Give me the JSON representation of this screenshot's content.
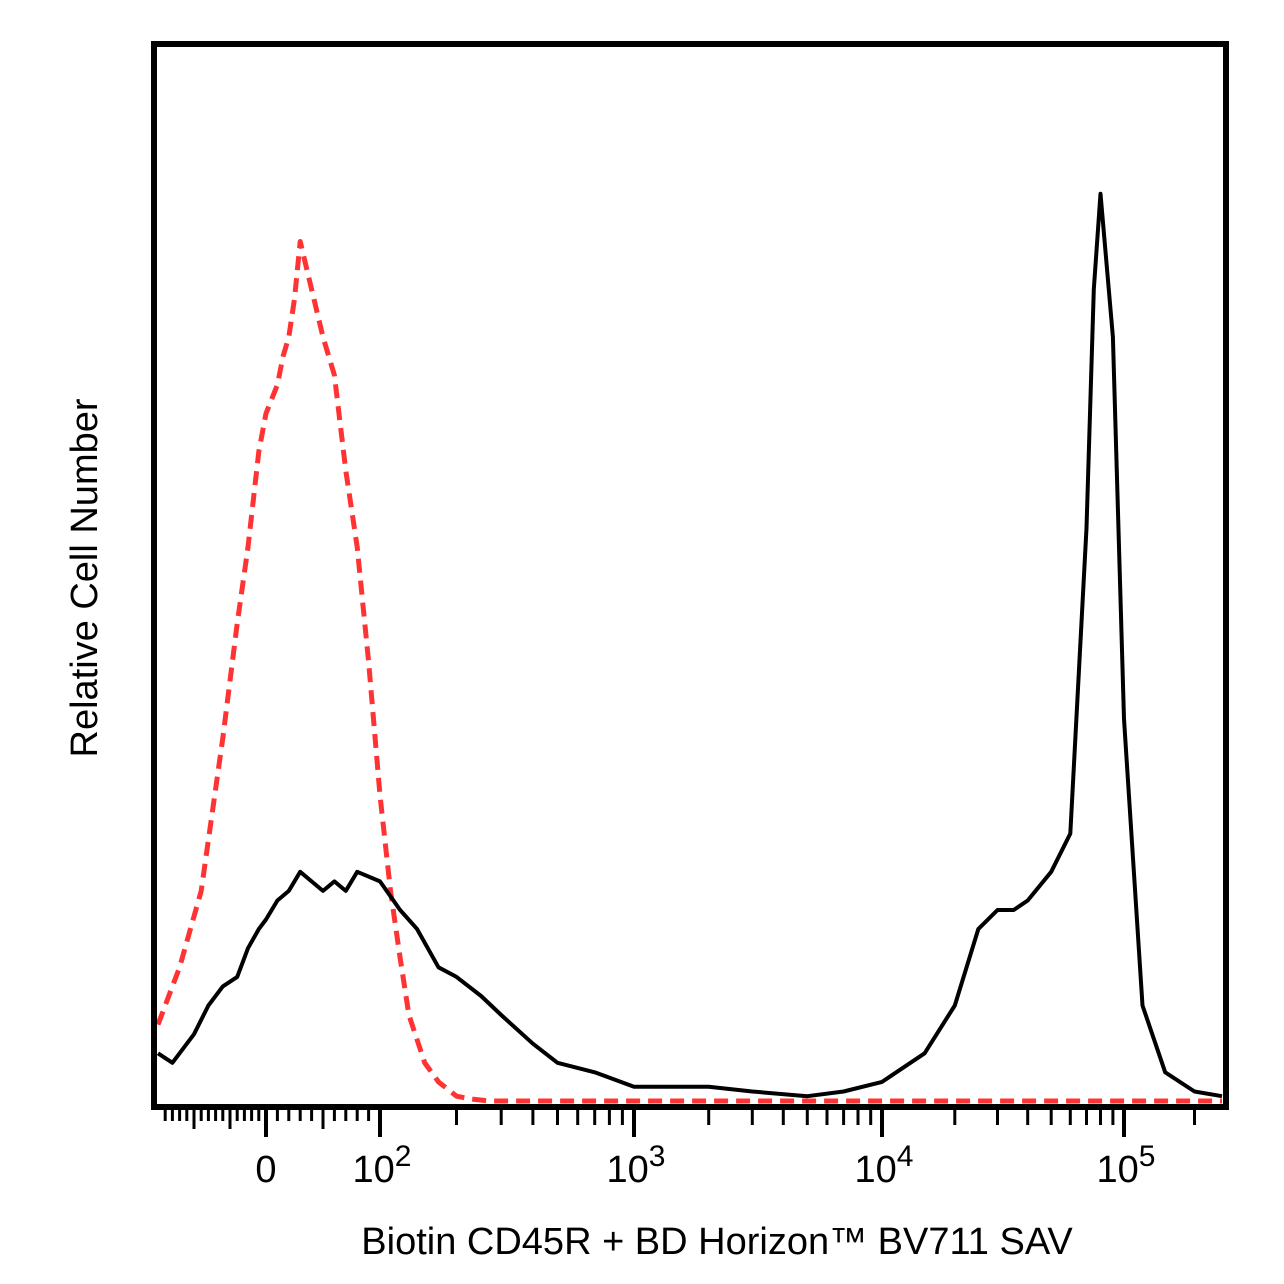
{
  "chart_data": {
    "type": "line",
    "xlabel": "Biotin CD45R + BD Horizon™ BV711 SAV",
    "ylabel": "Relative Cell Number",
    "x_scale": "biexponential (logicle)",
    "xlim": [
      -150,
      262144
    ],
    "ylim": [
      0,
      100
    ],
    "grid": false,
    "legend": "none",
    "x_tick_labels": [
      {
        "value": 0,
        "base": "0",
        "exp": ""
      },
      {
        "value": 100,
        "base": "10",
        "exp": "2"
      },
      {
        "value": 1000,
        "base": "10",
        "exp": "3"
      },
      {
        "value": 10000,
        "base": "10",
        "exp": "4"
      },
      {
        "value": 100000,
        "base": "10",
        "exp": "5"
      }
    ],
    "series": [
      {
        "style": "dashed",
        "color": "#ff3333",
        "x": [
          -150,
          -120,
          -90,
          -60,
          -40,
          -25,
          -10,
          0,
          10,
          15,
          20,
          25,
          30,
          40,
          50,
          60,
          70,
          80,
          90,
          100,
          110,
          120,
          130,
          150,
          170,
          200,
          230,
          270,
          300,
          350,
          400,
          500,
          700,
          1000,
          2000,
          5000,
          10000,
          20000,
          50000,
          100000,
          200000,
          262144
        ],
        "y": [
          8,
          14,
          22,
          38,
          50,
          58,
          68,
          72,
          75,
          78,
          80,
          84,
          90,
          85,
          80,
          76,
          66,
          58,
          46,
          32,
          22,
          15,
          9,
          4,
          2,
          0.5,
          0.2,
          0,
          0,
          0,
          0,
          0,
          0,
          0,
          0,
          0,
          0,
          0,
          0,
          0,
          0,
          0
        ]
      },
      {
        "style": "solid",
        "color": "#000000",
        "x": [
          -150,
          -130,
          -100,
          -80,
          -60,
          -40,
          -25,
          -10,
          0,
          10,
          20,
          30,
          40,
          50,
          60,
          70,
          80,
          100,
          120,
          140,
          170,
          200,
          250,
          300,
          400,
          500,
          700,
          1000,
          1500,
          2000,
          3000,
          5000,
          7000,
          10000,
          15000,
          20000,
          25000,
          30000,
          35000,
          40000,
          50000,
          60000,
          70000,
          75000,
          80000,
          90000,
          100000,
          120000,
          150000,
          200000,
          262144
        ],
        "y": [
          5,
          4,
          7,
          10,
          12,
          13,
          16,
          18,
          19,
          21,
          22,
          24,
          23,
          22,
          23,
          22,
          24,
          23,
          20,
          18,
          14,
          13,
          11,
          9,
          6,
          4,
          3,
          1.5,
          1.5,
          1.5,
          1,
          0.5,
          1,
          2,
          5,
          10,
          18,
          20,
          20,
          21,
          24,
          28,
          60,
          85,
          95,
          80,
          40,
          10,
          3,
          1,
          0.5
        ]
      }
    ]
  }
}
